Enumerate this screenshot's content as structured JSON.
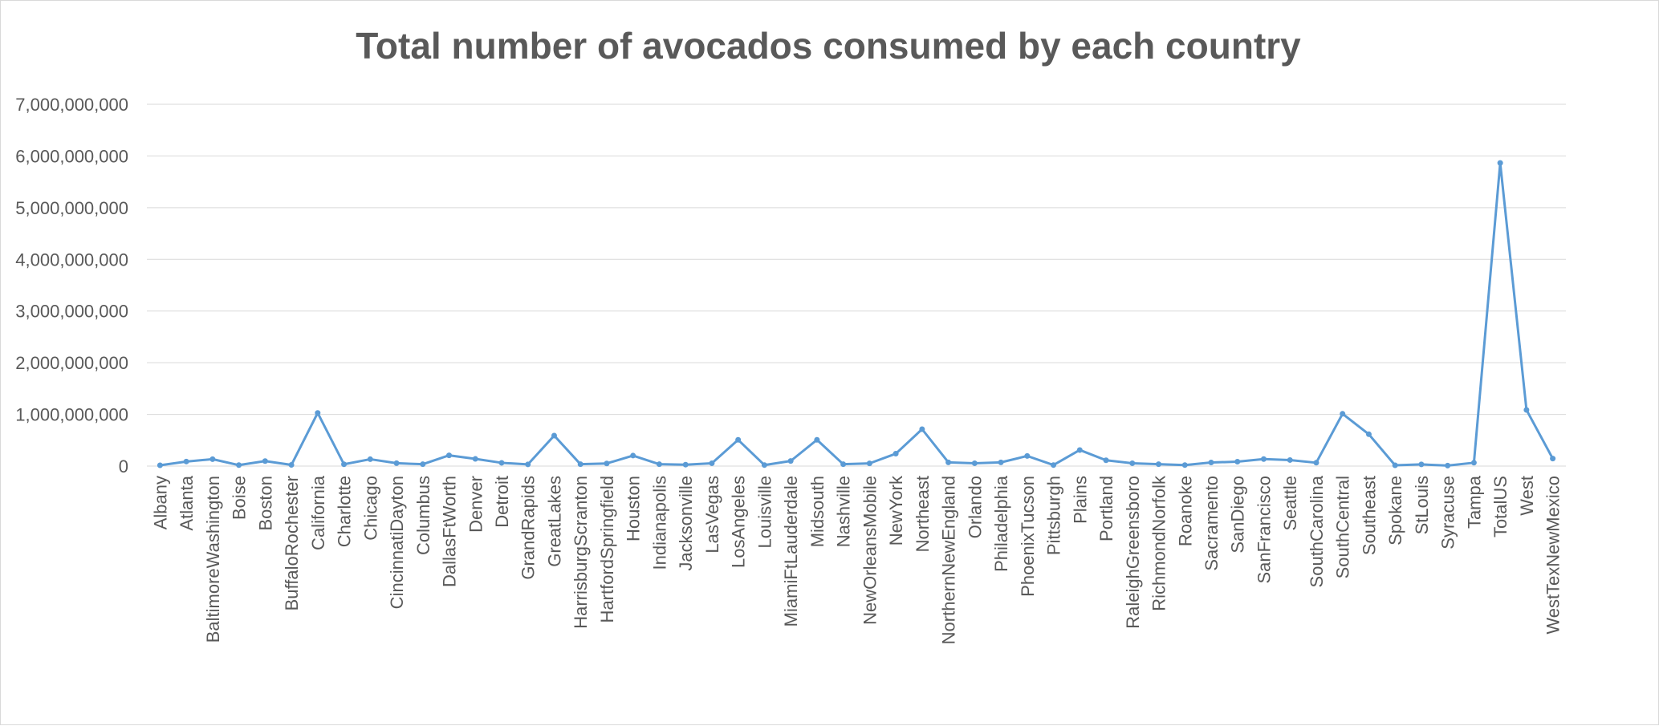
{
  "chart_data": {
    "type": "line",
    "title": "Total number of avocados consumed by each country",
    "xlabel": "",
    "ylabel": "",
    "ylim": [
      0,
      7000000000
    ],
    "yticks": [
      0,
      1000000000,
      2000000000,
      3000000000,
      4000000000,
      5000000000,
      6000000000,
      7000000000
    ],
    "ytick_labels": [
      "0",
      "1,000,000,000",
      "2,000,000,000",
      "3,000,000,000",
      "4,000,000,000",
      "5,000,000,000",
      "6,000,000,000",
      "7,000,000,000"
    ],
    "grid": true,
    "legend": "none",
    "series_color": "#5b9bd5",
    "categories": [
      "Albany",
      "Atlanta",
      "BaltimoreWashington",
      "Boise",
      "Boston",
      "BuffaloRochester",
      "California",
      "Charlotte",
      "Chicago",
      "CincinnatiDayton",
      "Columbus",
      "DallasFtWorth",
      "Denver",
      "Detroit",
      "GrandRapids",
      "GreatLakes",
      "HarrisburgScranton",
      "HartfordSpringfield",
      "Houston",
      "Indianapolis",
      "Jacksonville",
      "LasVegas",
      "LosAngeles",
      "Louisville",
      "MiamiFtLauderdale",
      "Midsouth",
      "Nashville",
      "NewOrleansMobile",
      "NewYork",
      "Northeast",
      "NorthernNewEngland",
      "Orlando",
      "Philadelphia",
      "PhoenixTucson",
      "Pittsburgh",
      "Plains",
      "Portland",
      "RaleighGreensboro",
      "RichmondNorfolk",
      "Roanoke",
      "Sacramento",
      "SanDiego",
      "SanFrancisco",
      "Seattle",
      "SouthCarolina",
      "SouthCentral",
      "Southeast",
      "Spokane",
      "StLouis",
      "Syracuse",
      "Tampa",
      "TotalUS",
      "West",
      "WestTexNewMexico"
    ],
    "series": [
      {
        "values": [
          16000000,
          88000000,
          134000000,
          19000000,
          97000000,
          23000000,
          1029000000,
          35000000,
          133000000,
          56000000,
          36000000,
          208000000,
          139000000,
          63000000,
          33000000,
          590000000,
          36000000,
          51000000,
          203000000,
          36000000,
          28000000,
          55000000,
          508000000,
          20000000,
          99000000,
          508000000,
          36000000,
          52000000,
          240000000,
          714000000,
          72000000,
          55000000,
          72000000,
          196000000,
          20000000,
          311000000,
          113000000,
          55000000,
          37000000,
          20000000,
          69000000,
          85000000,
          136000000,
          117000000,
          65000000,
          1012000000,
          616000000,
          15000000,
          33000000,
          10000000,
          65000000,
          5865000000,
          1087000000,
          145000000
        ]
      }
    ]
  }
}
